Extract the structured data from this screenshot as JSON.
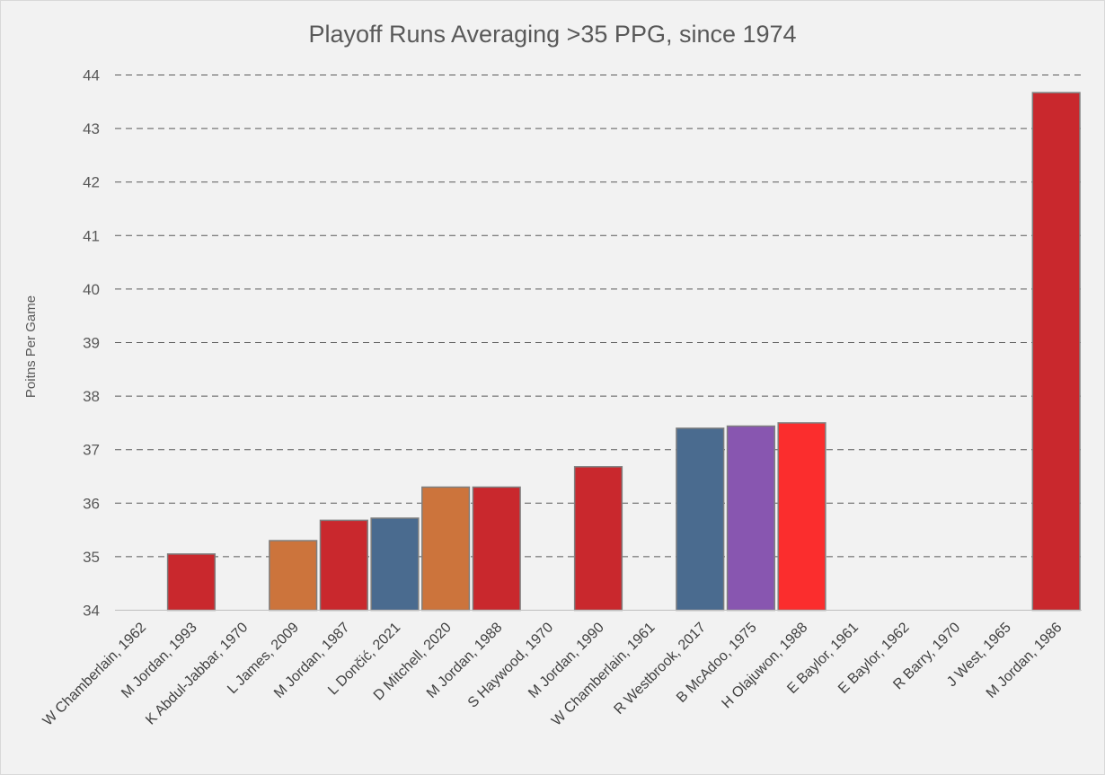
{
  "chart_data": {
    "type": "bar",
    "title": "Playoff Runs Averaging >35 PPG, since 1974",
    "xlabel": "",
    "ylabel": "Poitns Per Game",
    "ylim": [
      34,
      44
    ],
    "yticks": [
      34,
      35,
      36,
      37,
      38,
      39,
      40,
      41,
      42,
      43,
      44
    ],
    "grid": "horizontal dashed",
    "categories": [
      "W Chamberlain, 1962",
      "M Jordan, 1993",
      "K Abdul-Jabbar, 1970",
      "L James, 2009",
      "M Jordan, 1987",
      "L Dončić, 2021",
      "D Mitchell, 2020",
      "M Jordan, 1988",
      "S Haywood, 1970",
      "M Jordan, 1990",
      "W Chamberlain, 1961",
      "R Westbrook, 2017",
      "B McAdoo, 1975",
      "H Olajuwon, 1988",
      "E Baylor, 1961",
      "E Baylor, 1962",
      "R Barry, 1970",
      "J West, 1965",
      "M Jordan, 1986"
    ],
    "values": [
      null,
      35.05,
      null,
      35.3,
      35.68,
      35.72,
      36.3,
      36.3,
      null,
      36.68,
      null,
      37.4,
      37.44,
      37.5,
      null,
      null,
      null,
      null,
      43.67
    ],
    "colors": [
      "",
      "#c9282d",
      "",
      "#cc743c",
      "#c9282d",
      "#4a6b8f",
      "#cc743c",
      "#c9282d",
      "",
      "#c9282d",
      "",
      "#4a6b8f",
      "#8856b0",
      "#fb2d2d",
      "",
      "",
      "",
      "",
      "#c9282d"
    ]
  }
}
